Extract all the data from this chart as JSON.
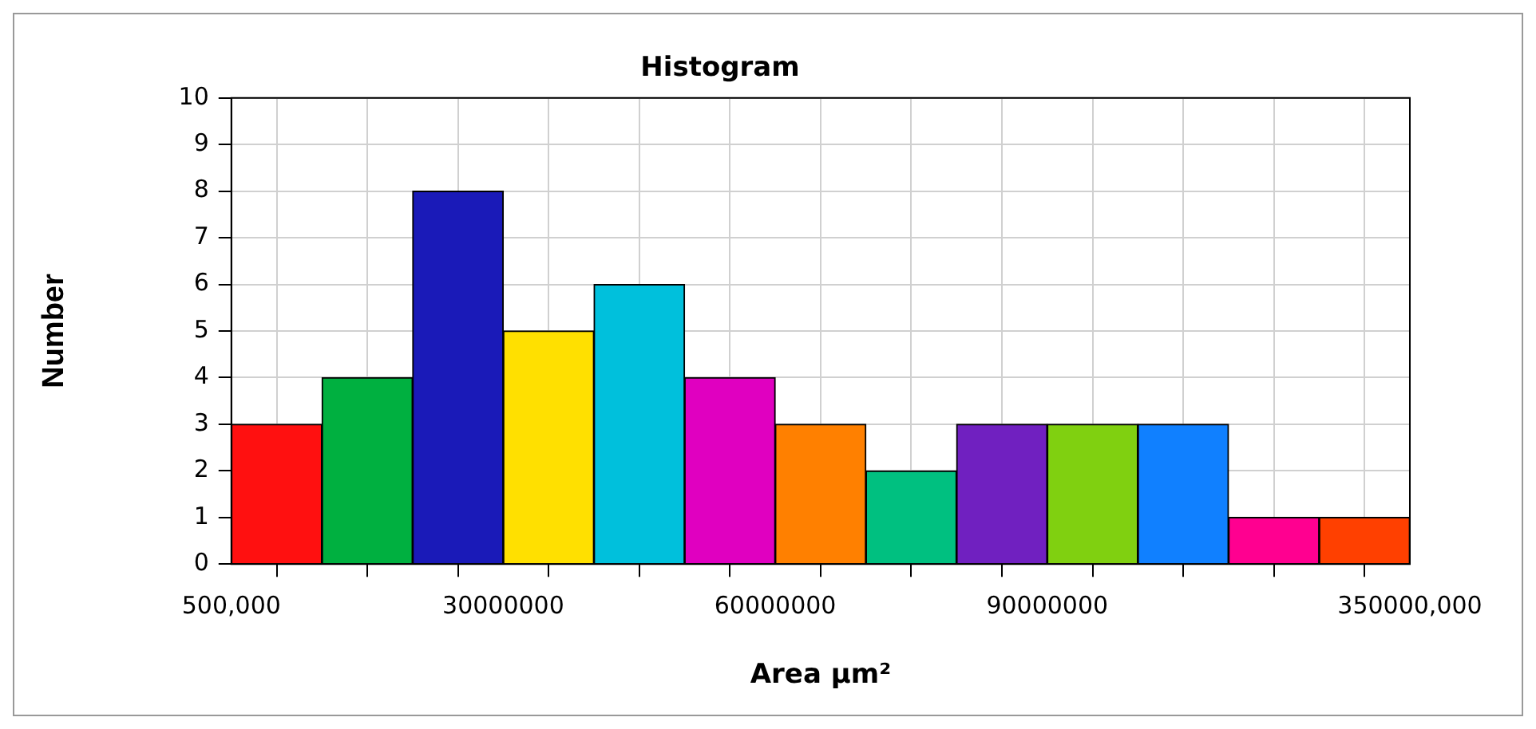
{
  "chart_data": {
    "type": "histogram",
    "title": "Histogram",
    "xlabel": "Area µm²",
    "ylabel": "Number",
    "bins": [
      500000,
      10000000,
      20000000,
      30000000,
      40000000,
      50000000,
      60000000,
      70000000,
      80000000,
      90000000,
      100000000,
      110000000,
      120000000,
      130000000
    ],
    "values": [
      3,
      4,
      8,
      5,
      6,
      4,
      3,
      2,
      3,
      3,
      3,
      1,
      1
    ],
    "colors": [
      "#ff1010",
      "#00b040",
      "#1a1ab8",
      "#ffe000",
      "#00c0dc",
      "#e000c0",
      "#ff8000",
      "#00c080",
      "#7020c0",
      "#80d010",
      "#1080ff",
      "#ff0090",
      "#ff4000"
    ],
    "xlim": [
      500000,
      130000000
    ],
    "ylim": [
      0,
      10
    ],
    "yticks": [
      0,
      1,
      2,
      3,
      4,
      5,
      6,
      7,
      8,
      9,
      10
    ],
    "xticks": [
      {
        "value": 500000,
        "label": "500,000"
      },
      {
        "value": 30000000,
        "label": "30000000"
      },
      {
        "value": 60000000,
        "label": "60000000"
      },
      {
        "value": 90000000,
        "label": "90000000"
      },
      {
        "value": 130000000,
        "label": "350000,000"
      }
    ],
    "grid": true,
    "legend": false
  }
}
